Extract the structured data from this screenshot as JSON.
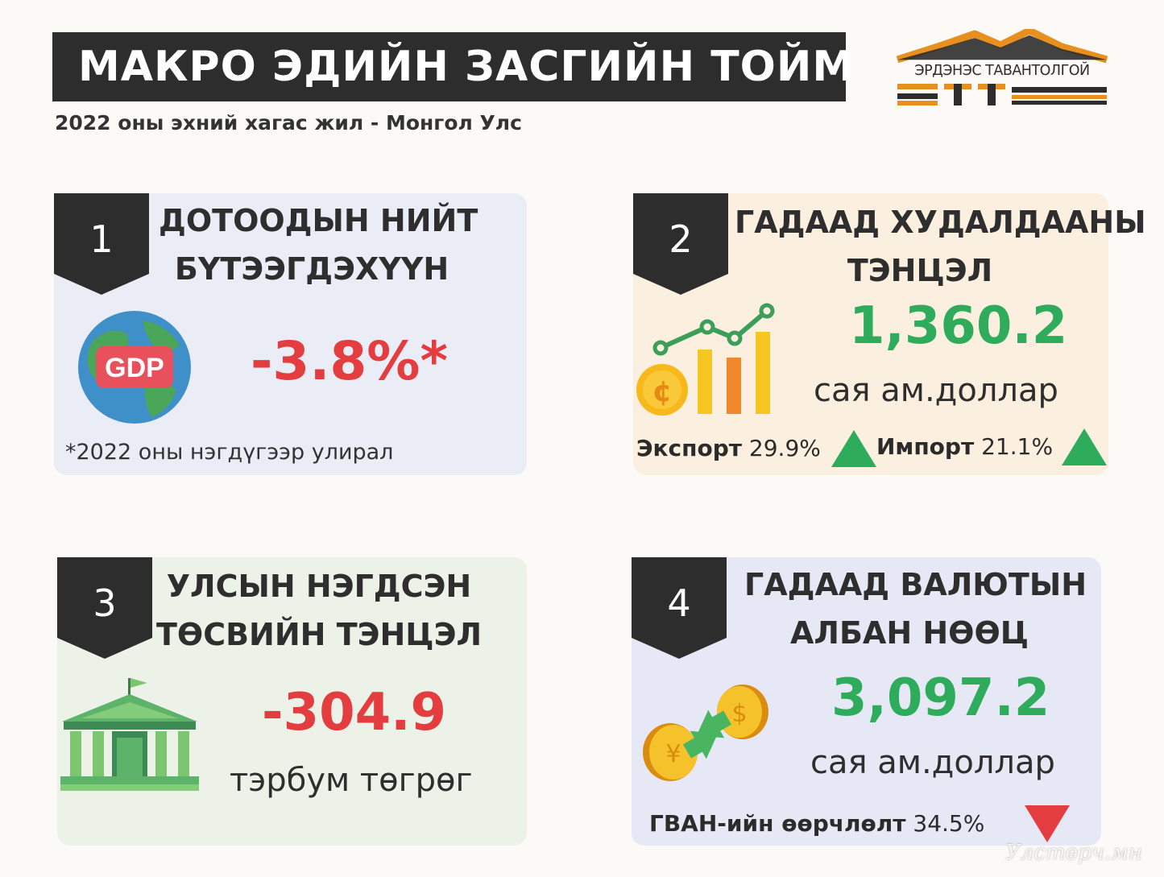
{
  "header": {
    "title": "МАКРО ЭДИЙН ЗАСГИЙН ТОЙМ",
    "subtitle": "2022 оны эхний хагас жил - Монгол Улс"
  },
  "logo": {
    "text": "ЭРДЭНЭС ТАВАНТОЛГОЙ",
    "letters": "ЕТТ"
  },
  "cards": [
    {
      "number": "1",
      "title_line1": "ДОТООДЫН НИЙТ",
      "title_line2": "БҮТЭЭГДЭХҮҮН",
      "icon_label": "GDP",
      "value": "-3.8%*",
      "note": "*2022 оны нэгдүгээр улирал"
    },
    {
      "number": "2",
      "title_line1": "ГАДААД ХУДАЛДААНЫ",
      "title_line2": "ТЭНЦЭЛ",
      "value": "1,360.2",
      "unit": "сая ам.доллар",
      "export_label": "Экспорт",
      "export_value": "29.9%",
      "import_label": "Импорт",
      "import_value": "21.1%"
    },
    {
      "number": "3",
      "title_line1": "УЛСЫН НЭГДСЭН",
      "title_line2": "ТӨСВИЙН ТЭНЦЭЛ",
      "value": "-304.9",
      "unit": "тэрбум төгрөг"
    },
    {
      "number": "4",
      "title_line1": "ГАДААД ВАЛЮТЫН",
      "title_line2": "АЛБАН НӨӨЦ",
      "value": "3,097.2",
      "unit": "сая ам.доллар",
      "change_label": "ГВАН-ийн өөрчлөлт",
      "change_value": "34.5%"
    }
  ],
  "watermark": "Улстөрч.мн",
  "colors": {
    "dark": "#2d2d2d",
    "red": "#e33d3f",
    "green": "#2eac5b",
    "orange": "#e8901f"
  }
}
